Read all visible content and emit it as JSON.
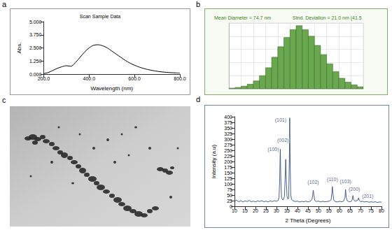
{
  "chart_data": [
    {
      "panel": "a",
      "type": "line",
      "title": "Scan Sample Data",
      "xlabel": "Wavelength (nm)",
      "ylabel": "Abs.",
      "x": [
        200,
        220,
        240,
        260,
        280,
        300,
        320,
        340,
        360,
        380,
        400,
        420,
        440,
        460,
        480,
        500,
        520,
        540,
        560,
        580,
        600,
        620,
        640,
        660,
        680,
        700,
        720,
        740,
        760,
        780,
        800
      ],
      "values": [
        0.05,
        0.15,
        0.35,
        0.55,
        0.7,
        0.8,
        0.75,
        1.1,
        1.6,
        2.1,
        2.5,
        2.75,
        2.8,
        2.7,
        2.5,
        2.2,
        1.9,
        1.6,
        1.3,
        1.05,
        0.85,
        0.68,
        0.54,
        0.43,
        0.34,
        0.27,
        0.21,
        0.17,
        0.14,
        0.12,
        0.1
      ],
      "color": "#000000",
      "xlim": [
        200,
        800
      ],
      "xticks": [
        {
          "value": 200,
          "label": "200.0"
        },
        {
          "value": 400,
          "label": "400.0"
        },
        {
          "value": 600,
          "label": "600.0"
        },
        {
          "value": 800,
          "label": "800.0"
        }
      ],
      "ylim": [
        0,
        5
      ],
      "yticks": [
        {
          "value": 0,
          "label": "0.000"
        },
        {
          "value": 1.25,
          "label": "1.250"
        },
        {
          "value": 2.5,
          "label": "2.500"
        },
        {
          "value": 3.75,
          "label": "3.750"
        },
        {
          "value": 5,
          "label": "5.000"
        }
      ],
      "grid": false
    },
    {
      "panel": "b",
      "type": "histogram",
      "annotations": [
        "Mean Diameter = 74.7 nm",
        "Stnd. Deviation = 21.0 nm (41.5"
      ],
      "bins": [
        12,
        18,
        24,
        30,
        36,
        42,
        48,
        54,
        60,
        66,
        72,
        78,
        84,
        90,
        96,
        102,
        108,
        114,
        120,
        126,
        132,
        138,
        144
      ],
      "values": [
        1,
        2,
        4,
        7,
        12,
        20,
        32,
        48,
        64,
        78,
        90,
        96,
        90,
        80,
        66,
        52,
        38,
        26,
        16,
        10,
        6,
        3
      ],
      "color": "#6aa84f",
      "xlim": [
        12,
        144
      ],
      "xticks": [
        12,
        24,
        36,
        48,
        60,
        72,
        84,
        96,
        108,
        120,
        132,
        144
      ],
      "ylim": [
        0,
        100
      ],
      "yticks": [
        0,
        20,
        40,
        60,
        80,
        100
      ],
      "grid": true,
      "tick_labels": false
    },
    {
      "panel": "d",
      "type": "line",
      "xlabel": "2 Theta (Degrees)",
      "ylabel": "Intensity (a.u)",
      "x": [
        10,
        11,
        12,
        13,
        14,
        15,
        16,
        17,
        18,
        19,
        20,
        21,
        22,
        23,
        24,
        25,
        26,
        27,
        28,
        29,
        30,
        30.8,
        31.2,
        31.5,
        31.8,
        32.1,
        32.4,
        32.8,
        33.2,
        33.8,
        34.1,
        34.4,
        34.7,
        35.0,
        35.4,
        35.8,
        36.1,
        36.3,
        36.5,
        36.8,
        37.2,
        38,
        39,
        40,
        41,
        42,
        43,
        44,
        45,
        46,
        46.9,
        47.3,
        47.5,
        47.8,
        48.2,
        49,
        50,
        51,
        52,
        53,
        54,
        55,
        56,
        56.4,
        56.6,
        56.9,
        57.3,
        58,
        59,
        60,
        61,
        62,
        62.6,
        62.9,
        63.2,
        63.7,
        64.5,
        65.5,
        66.1,
        66.4,
        66.7,
        67.4,
        68,
        68.8,
        69.1,
        69.4,
        70,
        71,
        72,
        73,
        74,
        75,
        76,
        77,
        78,
        79,
        80
      ],
      "values": [
        22,
        27,
        20,
        25,
        19,
        24,
        21,
        26,
        20,
        23,
        19,
        24,
        21,
        25,
        20,
        23,
        19,
        24,
        21,
        25,
        22,
        26,
        40,
        110,
        255,
        110,
        40,
        30,
        28,
        45,
        120,
        210,
        110,
        45,
        32,
        35,
        200,
        395,
        200,
        50,
        30,
        24,
        21,
        23,
        19,
        22,
        20,
        23,
        19,
        22,
        30,
        55,
        72,
        50,
        26,
        21,
        23,
        19,
        22,
        20,
        21,
        22,
        28,
        60,
        88,
        55,
        26,
        21,
        19,
        22,
        20,
        23,
        40,
        75,
        40,
        24,
        20,
        21,
        30,
        48,
        30,
        22,
        24,
        28,
        38,
        27,
        20,
        22,
        19,
        21,
        18,
        20,
        18,
        20,
        17,
        19,
        18
      ],
      "color": "#34507f",
      "xlim": [
        10,
        80
      ],
      "xticks": [
        10,
        15,
        20,
        25,
        30,
        35,
        40,
        45,
        50,
        55,
        60,
        65,
        70,
        75,
        80
      ],
      "ylim": [
        0,
        400
      ],
      "yticks": [
        0,
        25,
        50,
        75,
        100,
        125,
        150,
        175,
        200,
        225,
        250,
        275,
        300,
        325,
        350,
        375,
        400
      ],
      "annotations": [
        {
          "text": "(100)",
          "x": 31.8,
          "y": 255
        },
        {
          "text": "(002)",
          "x": 34.4,
          "y": 210
        },
        {
          "text": "(101)",
          "x": 36.3,
          "y": 395
        },
        {
          "text": "(102)",
          "x": 47.5,
          "y": 72
        },
        {
          "text": "(110)",
          "x": 56.6,
          "y": 88
        },
        {
          "text": "(103)",
          "x": 62.9,
          "y": 75
        },
        {
          "text": "(200)",
          "x": 66.4,
          "y": 48
        },
        {
          "text": "(201)",
          "x": 69.1,
          "y": 38
        }
      ],
      "grid": false
    }
  ],
  "image_panel": {
    "panel": "c"
  }
}
